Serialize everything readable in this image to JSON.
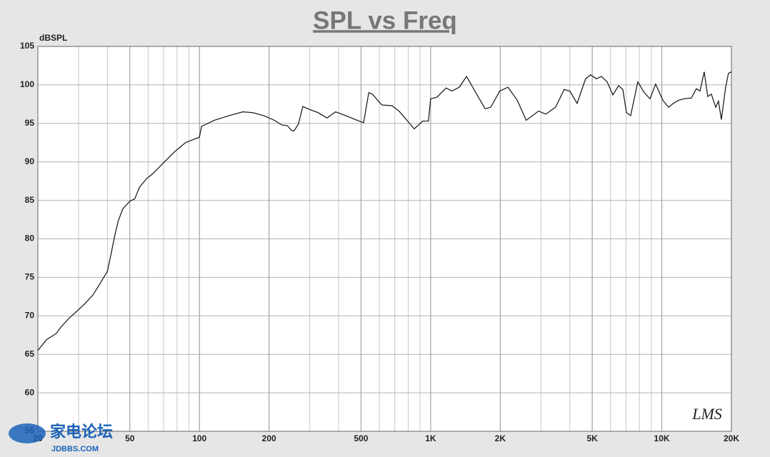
{
  "chart_data": {
    "type": "line",
    "title": "SPL vs Freq",
    "y_label": "dBSPL",
    "annotation": "LMS",
    "watermark": {
      "text": "家电论坛",
      "url": "JDBBS.COM"
    },
    "x_log": true,
    "grid": true,
    "color": "#111111",
    "xlim": [
      20,
      20000
    ],
    "ylim": [
      55,
      105
    ],
    "xticks": [
      20,
      50,
      100,
      200,
      500,
      {
        "value": 1000,
        "label": "1K"
      },
      {
        "value": 2000,
        "label": "2K"
      },
      {
        "value": 5000,
        "label": "5K"
      },
      {
        "value": 10000,
        "label": "10K"
      },
      {
        "value": 20000,
        "label": "20K"
      }
    ],
    "yticks": [
      55,
      60,
      65,
      70,
      75,
      80,
      85,
      90,
      95,
      100,
      105
    ],
    "x": [
      20,
      21.8,
      24,
      25.1,
      27.3,
      30,
      32,
      34.6,
      37,
      40,
      41.5,
      43,
      44.5,
      46.6,
      50,
      52.5,
      55,
      59,
      63,
      70,
      78,
      87,
      94,
      100,
      102,
      116,
      134,
      154,
      170,
      190,
      211,
      227,
      240,
      250,
      256,
      268,
      280,
      300,
      326,
      356,
      388,
      430,
      490,
      513,
      540,
      560,
      614,
      680,
      730,
      790,
      849,
      880,
      924,
      978,
      1000,
      1064,
      1167,
      1235,
      1330,
      1430,
      1540,
      1720,
      1820,
      1990,
      2160,
      2370,
      2590,
      2930,
      3150,
      3470,
      3780,
      4000,
      4300,
      4680,
      4920,
      5210,
      5480,
      5800,
      6140,
      6500,
      6780,
      7030,
      7330,
      7870,
      8390,
      8890,
      9400,
      10100,
      10690,
      11220,
      11800,
      12500,
      13420,
      14100,
      14620,
      15250,
      15800,
      16370,
      17100,
      17580,
      18090,
      18880,
      19410,
      20000
    ],
    "values": [
      65.5,
      66.9,
      67.7,
      68.5,
      69.7,
      70.8,
      71.6,
      72.7,
      74.1,
      75.8,
      78.1,
      80.4,
      82.3,
      83.9,
      84.9,
      85.2,
      86.7,
      87.8,
      88.5,
      89.9,
      91.3,
      92.5,
      92.9,
      93.2,
      94.6,
      95.4,
      96.0,
      96.5,
      96.4,
      96.0,
      95.4,
      94.8,
      94.7,
      94.1,
      94.0,
      94.9,
      97.2,
      96.8,
      96.4,
      95.7,
      96.5,
      96.0,
      95.3,
      95.1,
      99.0,
      98.8,
      97.4,
      97.3,
      96.6,
      95.4,
      94.3,
      94.7,
      95.3,
      95.3,
      98.2,
      98.4,
      99.6,
      99.2,
      99.7,
      101.1,
      99.4,
      96.9,
      97.1,
      99.2,
      99.7,
      98.0,
      95.4,
      96.6,
      96.2,
      97.1,
      99.4,
      99.2,
      97.6,
      100.8,
      101.3,
      100.8,
      101.1,
      100.4,
      98.7,
      99.9,
      99.4,
      96.4,
      96.0,
      100.4,
      99.0,
      98.2,
      100.1,
      98.0,
      97.1,
      97.6,
      98.0,
      98.2,
      98.3,
      99.5,
      99.2,
      101.7,
      98.5,
      98.8,
      97.1,
      97.9,
      95.5,
      99.7,
      101.5,
      101.7
    ]
  }
}
